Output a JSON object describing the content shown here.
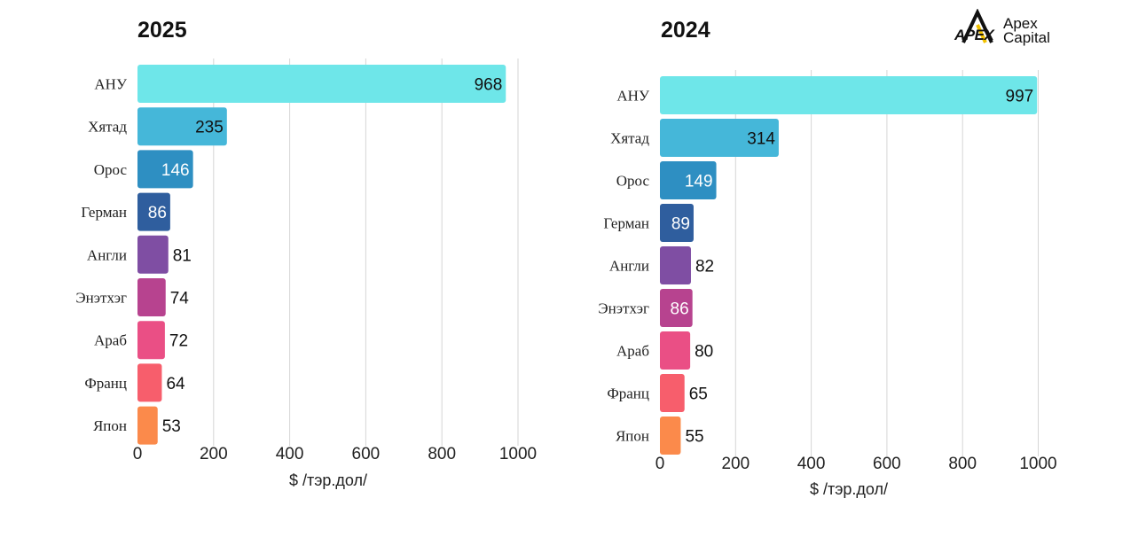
{
  "logo": {
    "mark": "APEX",
    "line1": "Apex",
    "line2": "Capital"
  },
  "chart_data": [
    {
      "type": "bar",
      "orientation": "horizontal",
      "title": "2025",
      "xlabel": "$ /тэр.дол/",
      "xlim": [
        0,
        1000
      ],
      "xticks": [
        0,
        200,
        400,
        600,
        800,
        1000
      ],
      "grid": true,
      "categories": [
        "АНУ",
        "Хятад",
        "Орос",
        "Герман",
        "Англи",
        "Энэтхэг",
        "Араб",
        "Франц",
        "Япон"
      ],
      "values": [
        968,
        235,
        146,
        86,
        81,
        74,
        72,
        64,
        53
      ],
      "colors": [
        "#6ee6e9",
        "#45b7d9",
        "#2e8fc2",
        "#2f5e9e",
        "#7f4ea3",
        "#b7438f",
        "#ea4f85",
        "#f75e6c",
        "#fb8a4b"
      ]
    },
    {
      "type": "bar",
      "orientation": "horizontal",
      "title": "2024",
      "xlabel": "$ /тэр.дол/",
      "xlim": [
        0,
        1000
      ],
      "xticks": [
        0,
        200,
        400,
        600,
        800,
        1000
      ],
      "grid": true,
      "categories": [
        "АНУ",
        "Хятад",
        "Орос",
        "Герман",
        "Англи",
        "Энэтхэг",
        "Араб",
        "Франц",
        "Япон"
      ],
      "values": [
        997,
        314,
        149,
        89,
        82,
        86,
        80,
        65,
        55
      ],
      "colors": [
        "#6ee6e9",
        "#45b7d9",
        "#2e8fc2",
        "#2f5e9e",
        "#7f4ea3",
        "#b7438f",
        "#ea4f85",
        "#f75e6c",
        "#fb8a4b"
      ]
    }
  ]
}
